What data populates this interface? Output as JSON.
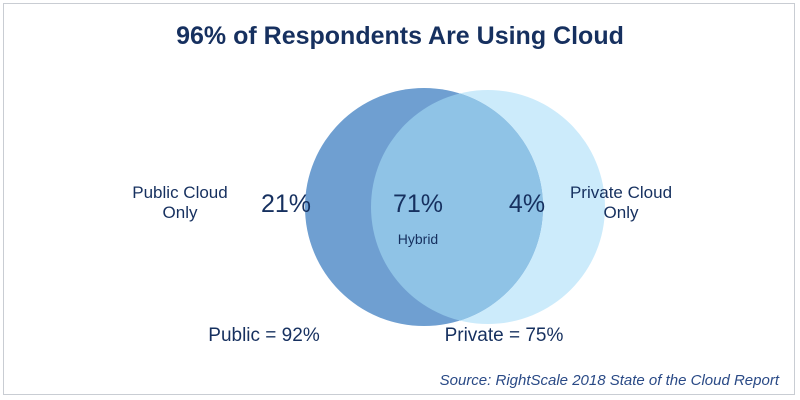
{
  "chart_data": {
    "type": "venn",
    "title": "96% of Respondents Are Using Cloud",
    "sets": [
      {
        "key": "public",
        "label_lines": [
          "Public Cloud",
          "Only"
        ],
        "only_value": "21%",
        "total_label": "Public = 92%",
        "total_value": 92,
        "color": "#6f9fd1"
      },
      {
        "key": "private",
        "label_lines": [
          "Private Cloud",
          "Only"
        ],
        "only_value": "4%",
        "total_label": "Private = 75%",
        "total_value": 75,
        "color": "#ccebfb"
      }
    ],
    "intersection": {
      "value": "71%",
      "label": "Hybrid",
      "color": "#8fc3e6"
    },
    "source": "Source: RightScale 2018 State of the Cloud Report"
  },
  "colors": {
    "text": "#16305f",
    "frame_border": "#c9cdd3",
    "public_circle": "#6f9fd1",
    "private_circle": "#ccebfb",
    "overlap": "#8fc3e6"
  }
}
